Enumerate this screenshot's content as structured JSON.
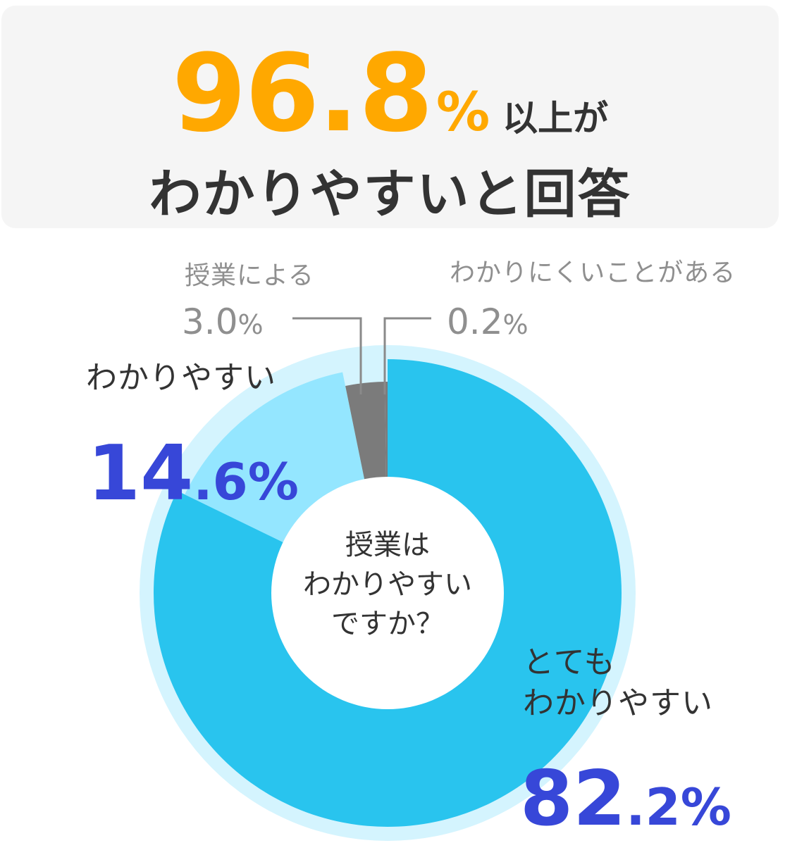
{
  "headline": {
    "number_int": "96",
    "number_dec": ".8",
    "percent": "%",
    "suffix": "以上が",
    "line2": "わかりやすいと回答"
  },
  "center": {
    "line1": "授業は",
    "line2": "わかりやすい",
    "line3": "ですか？"
  },
  "labels": {
    "very_easy_line1": "とても",
    "very_easy_line2": "わかりやすい",
    "very_easy_int": "82",
    "very_easy_dec": ".2%",
    "easy": "わかりやすい",
    "easy_int": "14",
    "easy_dec": ".6%",
    "depends": "授業による",
    "depends_val": "3.0",
    "depends_pct": "%",
    "hard": "わかりにくいことがある",
    "hard_val": "0.2",
    "hard_pct": "%"
  },
  "chart_data": {
    "type": "pie",
    "categories": [
      "とてもわかりやすい",
      "わかりやすい",
      "授業による",
      "わかりにくいことがある"
    ],
    "values": [
      82.2,
      14.6,
      3.0,
      0.2
    ],
    "colors": [
      "#29c4ee",
      "#94e6ff",
      "#7b7b7b",
      "#7b7b7b"
    ],
    "donut": true,
    "center_label": "授業はわかりやすいですか？"
  }
}
